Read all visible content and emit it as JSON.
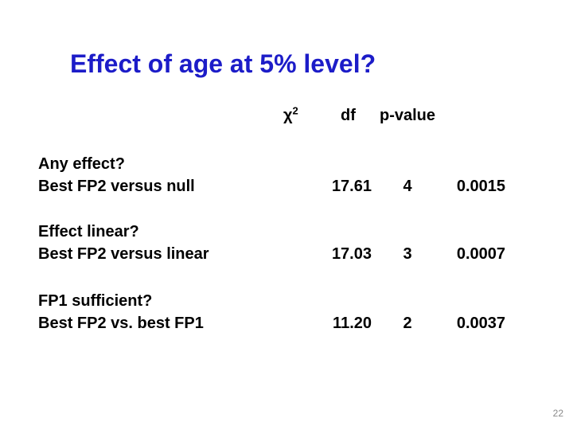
{
  "slide": {
    "title": "Effect of age at 5% level?",
    "title_color": "#1c1cc8",
    "background_color": "#ffffff",
    "page_number": "22"
  },
  "table": {
    "headers": {
      "chi_sq_base": "χ",
      "chi_sq_sup": "2",
      "df": "df",
      "p_value": "p-value"
    },
    "rows": [
      {
        "question": "Any effect?",
        "comparison": "Best FP2 versus null",
        "chi_sq": "17.61",
        "df": "4",
        "p_value": "0.0015"
      },
      {
        "question": "Effect linear?",
        "comparison": "Best FP2 versus linear",
        "chi_sq": "17.03",
        "df": "3",
        "p_value": "0.0007"
      },
      {
        "question": "FP1 sufficient?",
        "comparison": "Best FP2 vs. best FP1",
        "chi_sq": "11.20",
        "df": "2",
        "p_value": "0.0037"
      }
    ]
  }
}
